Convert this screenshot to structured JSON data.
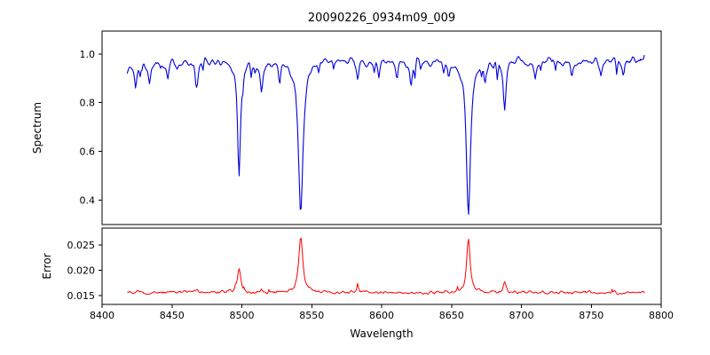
{
  "figure": {
    "background": "#ffffff",
    "axis_color": "#000000",
    "text_color": "#000000"
  },
  "chart_data": [
    {
      "type": "line",
      "panel": "spectrum",
      "title": "20090226_0934m09_009",
      "ylabel": "Spectrum",
      "x_range": [
        8400,
        8800
      ],
      "x_data_range": [
        8418,
        8788
      ],
      "ylim": [
        0.299,
        1.094
      ],
      "yticks": [
        0.4,
        0.6,
        0.8,
        1.0
      ],
      "ytick_labels": [
        "0.4",
        "0.6",
        "0.8",
        "1.0"
      ],
      "legend": "none",
      "grid": false,
      "series": {
        "name": "spectrum",
        "color": "#0000dd",
        "continuum": 0.972,
        "noise_amplitude": 0.03,
        "n_points": 560,
        "absorption_lines": [
          {
            "center": 8498.0,
            "width": 1.3,
            "depth": 0.46
          },
          {
            "center": 8542.1,
            "width": 2.0,
            "depth": 0.62
          },
          {
            "center": 8662.1,
            "width": 1.8,
            "depth": 0.62
          },
          {
            "center": 8424,
            "width": 1.0,
            "depth": 0.1
          },
          {
            "center": 8434,
            "width": 1.0,
            "depth": 0.09
          },
          {
            "center": 8447,
            "width": 0.9,
            "depth": 0.07
          },
          {
            "center": 8468,
            "width": 1.0,
            "depth": 0.11
          },
          {
            "center": 8514,
            "width": 1.1,
            "depth": 0.12
          },
          {
            "center": 8527,
            "width": 0.9,
            "depth": 0.08
          },
          {
            "center": 8583,
            "width": 0.9,
            "depth": 0.07
          },
          {
            "center": 8598,
            "width": 0.9,
            "depth": 0.06
          },
          {
            "center": 8611,
            "width": 0.9,
            "depth": 0.07
          },
          {
            "center": 8621,
            "width": 1.0,
            "depth": 0.09
          },
          {
            "center": 8648,
            "width": 0.9,
            "depth": 0.06
          },
          {
            "center": 8674,
            "width": 0.9,
            "depth": 0.07
          },
          {
            "center": 8688,
            "width": 1.2,
            "depth": 0.2
          },
          {
            "center": 8710,
            "width": 0.9,
            "depth": 0.06
          },
          {
            "center": 8736,
            "width": 1.0,
            "depth": 0.08
          },
          {
            "center": 8757,
            "width": 0.9,
            "depth": 0.06
          },
          {
            "center": 8773,
            "width": 0.9,
            "depth": 0.06
          }
        ]
      }
    },
    {
      "type": "line",
      "panel": "error",
      "ylabel": "Error",
      "xlabel": "Wavelength",
      "x_range": [
        8400,
        8800
      ],
      "x_data_range": [
        8418,
        8788
      ],
      "ylim": [
        0.01325,
        0.02833
      ],
      "yticks": [
        0.015,
        0.02,
        0.025
      ],
      "ytick_labels": [
        "0.015",
        "0.020",
        "0.025"
      ],
      "xticks": [
        8400,
        8450,
        8500,
        8550,
        8600,
        8650,
        8700,
        8750,
        8800
      ],
      "xtick_labels": [
        "8400",
        "8450",
        "8500",
        "8550",
        "8600",
        "8650",
        "8700",
        "8750",
        "8800"
      ],
      "legend": "none",
      "grid": false,
      "series": {
        "name": "error",
        "color": "#ff0000",
        "baseline": 0.0156,
        "noise_amplitude": 0.0005,
        "n_points": 560,
        "peaks": [
          {
            "center": 8498.0,
            "width": 1.4,
            "height": 0.0048
          },
          {
            "center": 8542.1,
            "width": 1.7,
            "height": 0.0112
          },
          {
            "center": 8662.1,
            "width": 1.5,
            "height": 0.0105
          },
          {
            "center": 8688,
            "width": 1.1,
            "height": 0.0018
          },
          {
            "center": 8583,
            "width": 0.9,
            "height": 0.0012
          },
          {
            "center": 8514,
            "width": 0.9,
            "height": 0.0008
          },
          {
            "center": 8468,
            "width": 0.9,
            "height": 0.0005
          }
        ]
      }
    }
  ]
}
